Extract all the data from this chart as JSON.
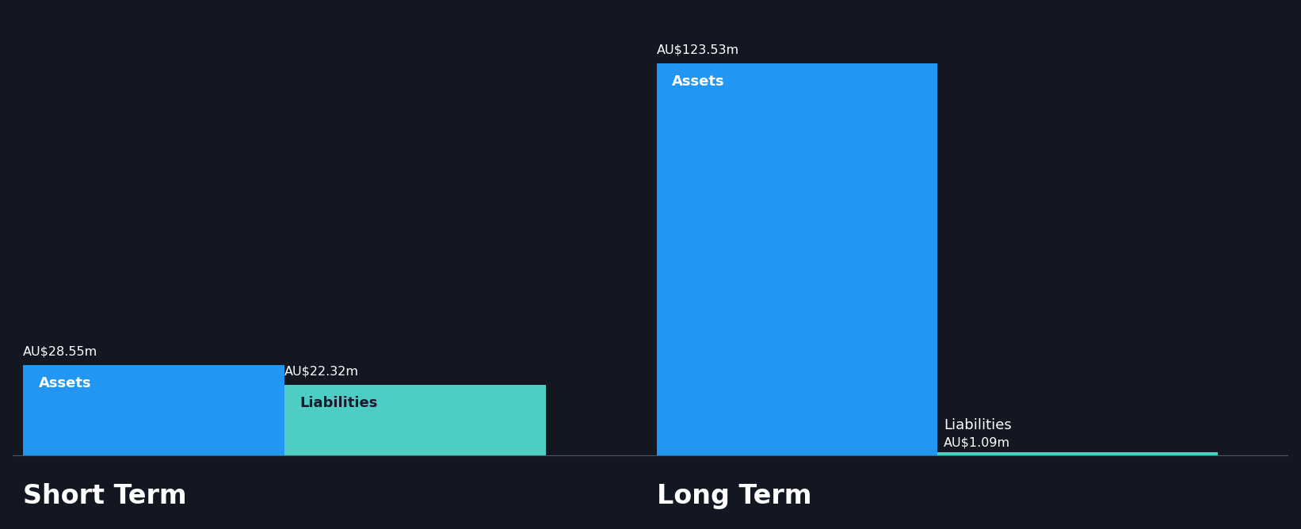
{
  "background_color": "#131722",
  "short_term": {
    "assets_value": 28.55,
    "liabilities_value": 22.32,
    "assets_label": "Assets",
    "liabilities_label": "Liabilities",
    "assets_color": "#2196F3",
    "liabilities_color": "#4ECDC4",
    "label": "Short Term"
  },
  "long_term": {
    "assets_value": 123.53,
    "liabilities_value": 1.09,
    "assets_label": "Assets",
    "liabilities_label": "Liabilities",
    "assets_color": "#2196F3",
    "liabilities_color": "#4ECDC4",
    "label": "Long Term"
  },
  "text_color": "#ffffff",
  "value_label_fontsize": 11.5,
  "bar_inner_label_fontsize": 13,
  "section_label_fontsize": 24,
  "max_value": 123.53,
  "fig_width": 16.42,
  "fig_height": 6.68,
  "dpi": 100
}
